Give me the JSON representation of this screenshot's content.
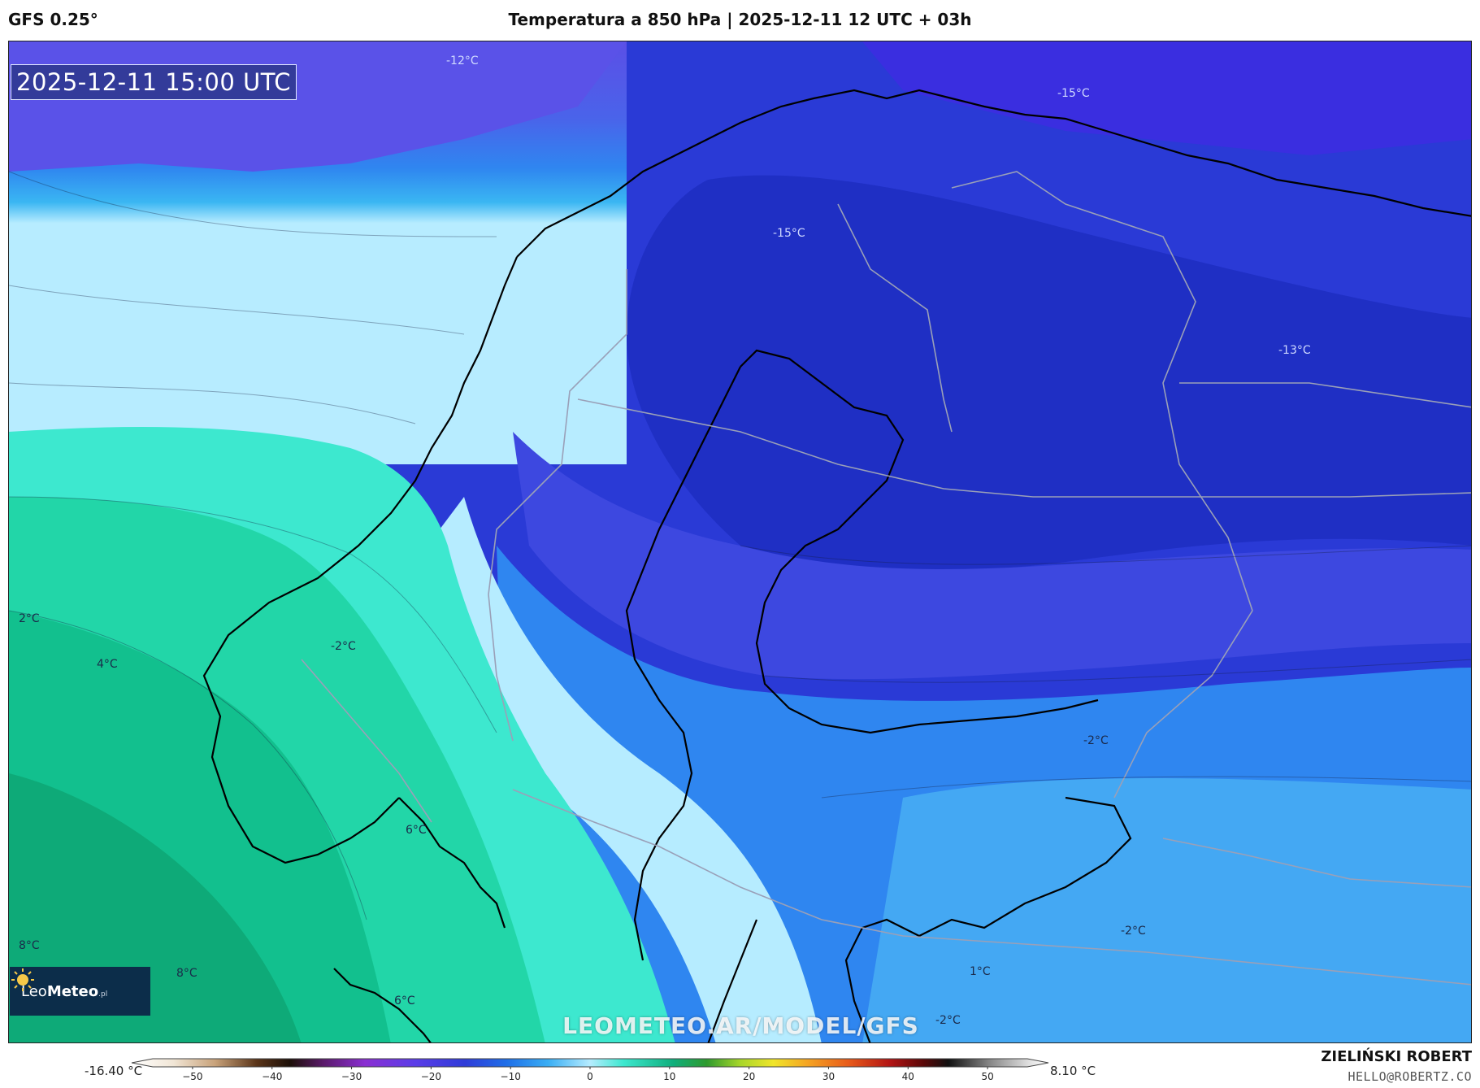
{
  "header": {
    "model": "GFS 0.25°",
    "title": "Temperatura a 850 hPa | 2025-12-11 12 UTC + 03h"
  },
  "map": {
    "valid_time": "2025-12-11 15:00 UTC",
    "watermark": "LEOMETEO.AR/MODEL/GFS",
    "logo": {
      "brand_light": "Leo",
      "brand_bold": "Meteo",
      "suffix": ".pl",
      "icon": "sun-icon"
    },
    "isotherm_labels": [
      {
        "text": "-12°C"
      },
      {
        "text": "-15°C"
      },
      {
        "text": "-15°C"
      },
      {
        "text": "-13°C"
      },
      {
        "text": "2°C"
      },
      {
        "text": "4°C"
      },
      {
        "text": "-2°C"
      },
      {
        "text": "6°C"
      },
      {
        "text": "8°C"
      },
      {
        "text": "8°C"
      },
      {
        "text": "-2°C"
      },
      {
        "text": "-2°C"
      },
      {
        "text": "1°C"
      },
      {
        "text": "-2°C"
      },
      {
        "text": "6°C"
      }
    ],
    "colors": {
      "cold_deep": "#1f2fc4",
      "cold_mid": "#3f4de6",
      "cold_light": "#2f86f0",
      "zero_band": "#aee7ff",
      "warm_light": "#3de8cf",
      "warm_mid": "#19cf9e",
      "warm_deep": "#0fae7c"
    }
  },
  "colorbar": {
    "min_label": "-16.40 °C",
    "max_label": "8.10 °C",
    "ticks": [
      "−50",
      "−40",
      "−30",
      "−20",
      "−10",
      "0",
      "10",
      "20",
      "30",
      "40",
      "50"
    ],
    "tick_values": [
      -50,
      -40,
      -30,
      -20,
      -10,
      0,
      10,
      20,
      30,
      40,
      50
    ],
    "range": [
      -55,
      55
    ],
    "stops": [
      {
        "t": -55,
        "c": "#ffffff"
      },
      {
        "t": -50,
        "c": "#f1e6d6"
      },
      {
        "t": -45,
        "c": "#c8a27a"
      },
      {
        "t": -40,
        "c": "#5a3418"
      },
      {
        "t": -36,
        "c": "#1c0f08"
      },
      {
        "t": -32,
        "c": "#5a1a6a"
      },
      {
        "t": -27,
        "c": "#8a2fd2"
      },
      {
        "t": -21,
        "c": "#5b3de8"
      },
      {
        "t": -15,
        "c": "#2f3cd8"
      },
      {
        "t": -10,
        "c": "#1f6fe8"
      },
      {
        "t": -5,
        "c": "#3aaef4"
      },
      {
        "t": 0,
        "c": "#b6ecff"
      },
      {
        "t": 4,
        "c": "#3de8cf"
      },
      {
        "t": 10,
        "c": "#0fae7c"
      },
      {
        "t": 14,
        "c": "#2e9a2e"
      },
      {
        "t": 18,
        "c": "#a7d62a"
      },
      {
        "t": 22,
        "c": "#f0e52a"
      },
      {
        "t": 26,
        "c": "#f5a623"
      },
      {
        "t": 31,
        "c": "#e85b1a"
      },
      {
        "t": 36,
        "c": "#b21414"
      },
      {
        "t": 40,
        "c": "#5a0808"
      },
      {
        "t": 43,
        "c": "#111111"
      },
      {
        "t": 48,
        "c": "#888888"
      },
      {
        "t": 53,
        "c": "#e6e6e6"
      },
      {
        "t": 55,
        "c": "#ffffff"
      }
    ]
  },
  "footer": {
    "author": "ZIELIŃSKI ROBERT",
    "email": "HELLO@ROBERTZ.CO"
  }
}
